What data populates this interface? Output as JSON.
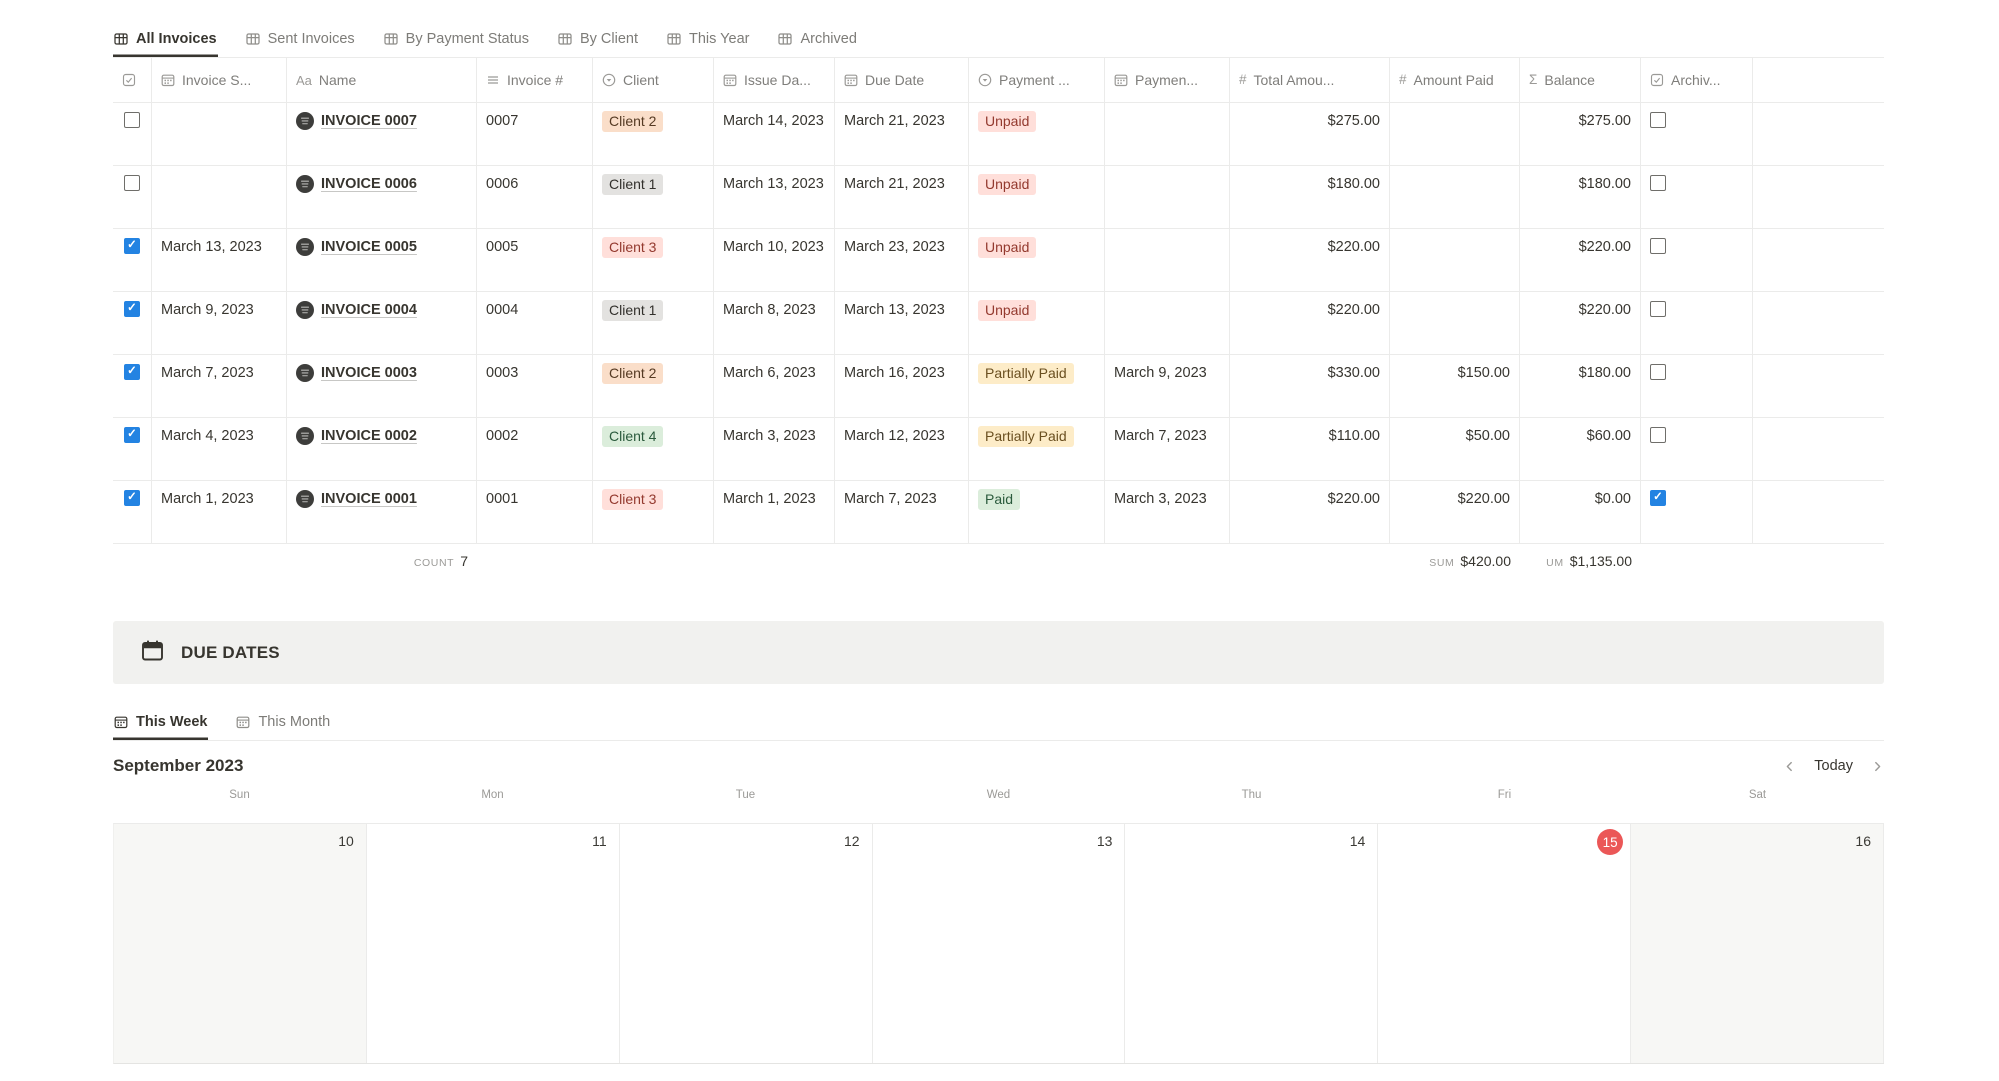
{
  "view_tabs": [
    {
      "label": "All Invoices",
      "active": true
    },
    {
      "label": "Sent Invoices",
      "active": false
    },
    {
      "label": "By Payment Status",
      "active": false
    },
    {
      "label": "By Client",
      "active": false
    },
    {
      "label": "This Year",
      "active": false
    },
    {
      "label": "Archived",
      "active": false
    }
  ],
  "table": {
    "columns": [
      {
        "key": "select",
        "label": "",
        "icon": "checkbox-all-icon"
      },
      {
        "key": "sent",
        "label": "Invoice S...",
        "icon": "calendar-icon"
      },
      {
        "key": "name",
        "label": "Name",
        "icon": "title-icon"
      },
      {
        "key": "number",
        "label": "Invoice #",
        "icon": "text-icon"
      },
      {
        "key": "client",
        "label": "Client",
        "icon": "select-icon"
      },
      {
        "key": "issue",
        "label": "Issue Da...",
        "icon": "calendar-icon"
      },
      {
        "key": "due",
        "label": "Due Date",
        "icon": "calendar-icon"
      },
      {
        "key": "status",
        "label": "Payment ...",
        "icon": "select-icon"
      },
      {
        "key": "paydate",
        "label": "Paymen...",
        "icon": "calendar-icon"
      },
      {
        "key": "total",
        "label": "Total Amou...",
        "icon": "number-icon"
      },
      {
        "key": "paid",
        "label": "Amount Paid",
        "icon": "number-icon"
      },
      {
        "key": "balance",
        "label": "Balance",
        "icon": "sum-icon"
      },
      {
        "key": "archived",
        "label": "Archiv...",
        "icon": "checkbox-icon"
      },
      {
        "key": "spacer",
        "label": "",
        "icon": null
      }
    ],
    "rows": [
      {
        "selected": false,
        "sent": "",
        "name": "INVOICE 0007",
        "number": "0007",
        "client": "Client 2",
        "client_color": "orange",
        "issue": "March 14, 2023",
        "due": "March 21, 2023",
        "status": "Unpaid",
        "status_color": "red",
        "paydate": "",
        "total": "$275.00",
        "paid": "",
        "balance": "$275.00",
        "archived": false
      },
      {
        "selected": false,
        "sent": "",
        "name": "INVOICE 0006",
        "number": "0006",
        "client": "Client 1",
        "client_color": "gray",
        "issue": "March 13, 2023",
        "due": "March 21, 2023",
        "status": "Unpaid",
        "status_color": "red",
        "paydate": "",
        "total": "$180.00",
        "paid": "",
        "balance": "$180.00",
        "archived": false
      },
      {
        "selected": true,
        "sent": "March 13, 2023",
        "name": "INVOICE 0005",
        "number": "0005",
        "client": "Client 3",
        "client_color": "pink",
        "issue": "March 10, 2023",
        "due": "March 23, 2023",
        "status": "Unpaid",
        "status_color": "red",
        "paydate": "",
        "total": "$220.00",
        "paid": "",
        "balance": "$220.00",
        "archived": false
      },
      {
        "selected": true,
        "sent": "March 9, 2023",
        "name": "INVOICE 0004",
        "number": "0004",
        "client": "Client 1",
        "client_color": "gray",
        "issue": "March 8, 2023",
        "due": "March 13, 2023",
        "status": "Unpaid",
        "status_color": "red",
        "paydate": "",
        "total": "$220.00",
        "paid": "",
        "balance": "$220.00",
        "archived": false
      },
      {
        "selected": true,
        "sent": "March 7, 2023",
        "name": "INVOICE 0003",
        "number": "0003",
        "client": "Client 2",
        "client_color": "orange",
        "issue": "March 6, 2023",
        "due": "March 16, 2023",
        "status": "Partially Paid",
        "status_color": "yellow",
        "paydate": "March 9, 2023",
        "total": "$330.00",
        "paid": "$150.00",
        "balance": "$180.00",
        "archived": false
      },
      {
        "selected": true,
        "sent": "March 4, 2023",
        "name": "INVOICE 0002",
        "number": "0002",
        "client": "Client 4",
        "client_color": "green",
        "issue": "March 3, 2023",
        "due": "March 12, 2023",
        "status": "Partially Paid",
        "status_color": "yellow",
        "paydate": "March 7, 2023",
        "total": "$110.00",
        "paid": "$50.00",
        "balance": "$60.00",
        "archived": false
      },
      {
        "selected": true,
        "sent": "March 1, 2023",
        "name": "INVOICE 0001",
        "number": "0001",
        "client": "Client 3",
        "client_color": "pink",
        "issue": "March 1, 2023",
        "due": "March 7, 2023",
        "status": "Paid",
        "status_color": "green",
        "paydate": "March 3, 2023",
        "total": "$220.00",
        "paid": "$220.00",
        "balance": "$0.00",
        "archived": true
      }
    ],
    "footer": {
      "count_label": "COUNT",
      "count_value": "7",
      "sum_label": "SUM",
      "sum_value": "$420.00",
      "sum2_label": "UM",
      "sum2_value": "$1,135.00"
    }
  },
  "due_dates": {
    "title": "DUE DATES"
  },
  "range_tabs": [
    {
      "label": "This Week",
      "active": true
    },
    {
      "label": "This Month",
      "active": false
    }
  ],
  "calendar": {
    "month_title": "September 2023",
    "nav": {
      "today_label": "Today"
    },
    "day_headers": [
      "Sun",
      "Mon",
      "Tue",
      "Wed",
      "Thu",
      "Fri",
      "Sat"
    ],
    "week": [
      {
        "label": "10",
        "weekend": true,
        "today": false
      },
      {
        "label": "11",
        "weekend": false,
        "today": false
      },
      {
        "label": "12",
        "weekend": false,
        "today": false
      },
      {
        "label": "13",
        "weekend": false,
        "today": false
      },
      {
        "label": "14",
        "weekend": false,
        "today": false
      },
      {
        "label": "15",
        "weekend": false,
        "today": true
      },
      {
        "label": "16",
        "weekend": true,
        "today": false
      }
    ]
  },
  "colors": {
    "accent_blue": "#2383e2",
    "today_red": "#eb5757",
    "badge": {
      "gray": {
        "bg": "#e3e2e0",
        "text": "#32302c"
      },
      "orange": {
        "bg": "#fadec9",
        "text": "#553A23"
      },
      "pink": {
        "bg": "#ffdfda",
        "text": "#93392e"
      },
      "red": {
        "bg": "#ffdfda",
        "text": "#93392e"
      },
      "yellow": {
        "bg": "#fdecc8",
        "text": "#6a4f20"
      },
      "green": {
        "bg": "#dbeddb",
        "text": "#2a5a3c"
      }
    }
  }
}
